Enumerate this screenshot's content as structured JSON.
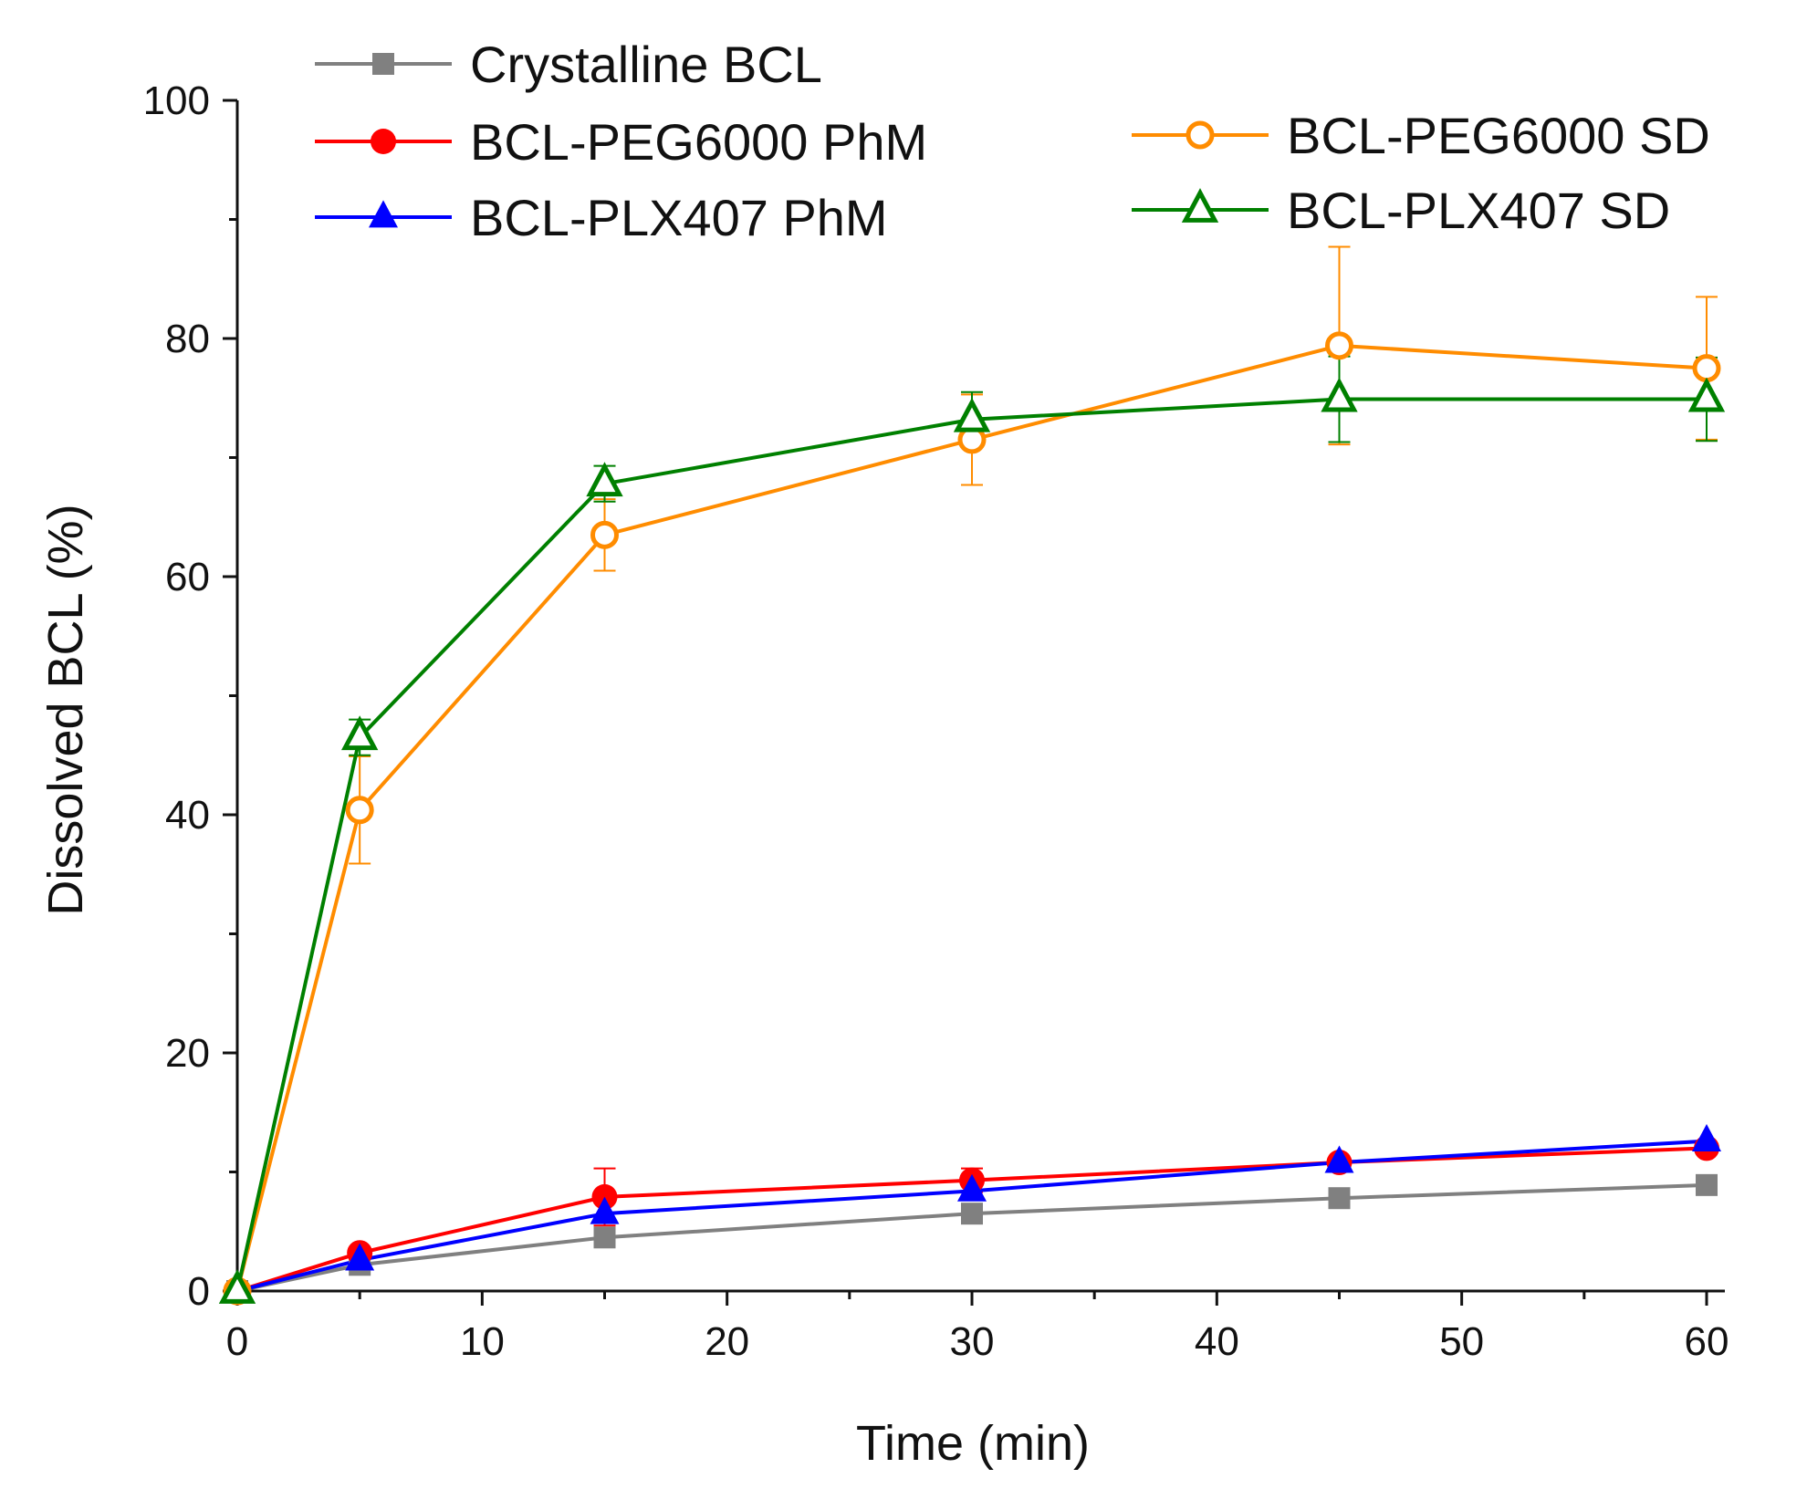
{
  "chart_data": {
    "type": "line",
    "title": "",
    "xlabel": "Time (min)",
    "ylabel": "Dissolved BCL (%)",
    "xlim": [
      0,
      60
    ],
    "ylim": [
      0,
      100
    ],
    "x_ticks": [
      0,
      10,
      20,
      30,
      40,
      50,
      60
    ],
    "y_ticks": [
      0,
      20,
      40,
      60,
      80,
      100
    ],
    "x_tick_labels": [
      "0",
      "10",
      "20",
      "30",
      "40",
      "50",
      "60"
    ],
    "y_tick_labels": [
      "0",
      "20",
      "40",
      "60",
      "80",
      "100"
    ],
    "grid": false,
    "legend_position": "top",
    "series": [
      {
        "name": "Crystalline BCL",
        "color": "#808080",
        "marker": "square-filled",
        "x": [
          0,
          5,
          15,
          30,
          45,
          60
        ],
        "y": [
          0,
          2.2,
          4.5,
          6.5,
          7.8,
          8.9
        ],
        "error": [
          0,
          0,
          0,
          0,
          0,
          0
        ]
      },
      {
        "name": "BCL-PEG6000 PhM",
        "color": "#ff0000",
        "marker": "circle-filled",
        "x": [
          0,
          5,
          15,
          30,
          45,
          60
        ],
        "y": [
          0,
          3.2,
          7.9,
          9.3,
          10.8,
          12.0
        ],
        "error": [
          0,
          0,
          2.4,
          1.0,
          0,
          0
        ]
      },
      {
        "name": "BCL-PLX407 PhM",
        "color": "#0000ff",
        "marker": "triangle-filled",
        "x": [
          0,
          5,
          15,
          30,
          45,
          60
        ],
        "y": [
          0,
          2.6,
          6.5,
          8.4,
          10.8,
          12.6
        ],
        "error": [
          0,
          0,
          0,
          0,
          0,
          0
        ]
      },
      {
        "name": "BCL-PEG6000 SD",
        "color": "#ff8c00",
        "marker": "circle-open",
        "x": [
          0,
          5,
          15,
          30,
          45,
          60
        ],
        "y": [
          0,
          40.4,
          63.5,
          71.5,
          79.4,
          77.5
        ],
        "error": [
          0,
          4.5,
          3.0,
          3.8,
          8.3,
          6.0
        ]
      },
      {
        "name": "BCL-PLX407 SD",
        "color": "#008000",
        "marker": "triangle-open",
        "x": [
          0,
          5,
          15,
          30,
          45,
          60
        ],
        "y": [
          0,
          46.5,
          67.8,
          73.2,
          74.9,
          74.9
        ],
        "error": [
          0,
          1.5,
          1.5,
          2.3,
          3.6,
          3.5
        ]
      }
    ]
  }
}
